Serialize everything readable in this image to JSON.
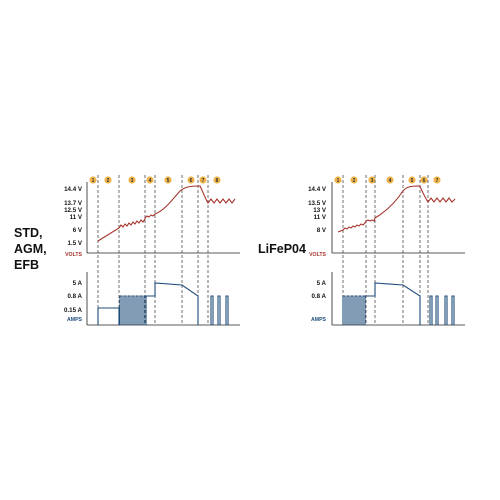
{
  "colors": {
    "volts": "#a6332b",
    "amps": "#1d4b7a",
    "badge": "#f0b54a",
    "axis": "#222222",
    "divider": "#333333"
  },
  "charts": [
    {
      "mode_lines": [
        "STD,",
        "AGM,",
        "EFB"
      ],
      "stages": [
        "1",
        "2",
        "3",
        "4",
        "5",
        "6",
        "7",
        "8"
      ],
      "volt_ticks": [
        "14.4 V",
        "13.7 V",
        "12.5 V",
        "11 V",
        "6 V",
        "1.5 V"
      ],
      "volt_unit": "VOLTS",
      "amp_ticks": [
        "5 A",
        "0.8 A",
        "0.15 A"
      ],
      "amp_unit": "AMPS"
    },
    {
      "mode_lines": [
        "LiFeP04"
      ],
      "stages": [
        "1",
        "2",
        "3",
        "4",
        "5",
        "6",
        "7"
      ],
      "volt_ticks": [
        "14.4 V",
        "13.5 V",
        "13 V",
        "11 V",
        "8 V"
      ],
      "volt_unit": "VOLTS",
      "amp_ticks": [
        "5 A",
        "0.8 A"
      ],
      "amp_unit": "AMPS"
    }
  ]
}
